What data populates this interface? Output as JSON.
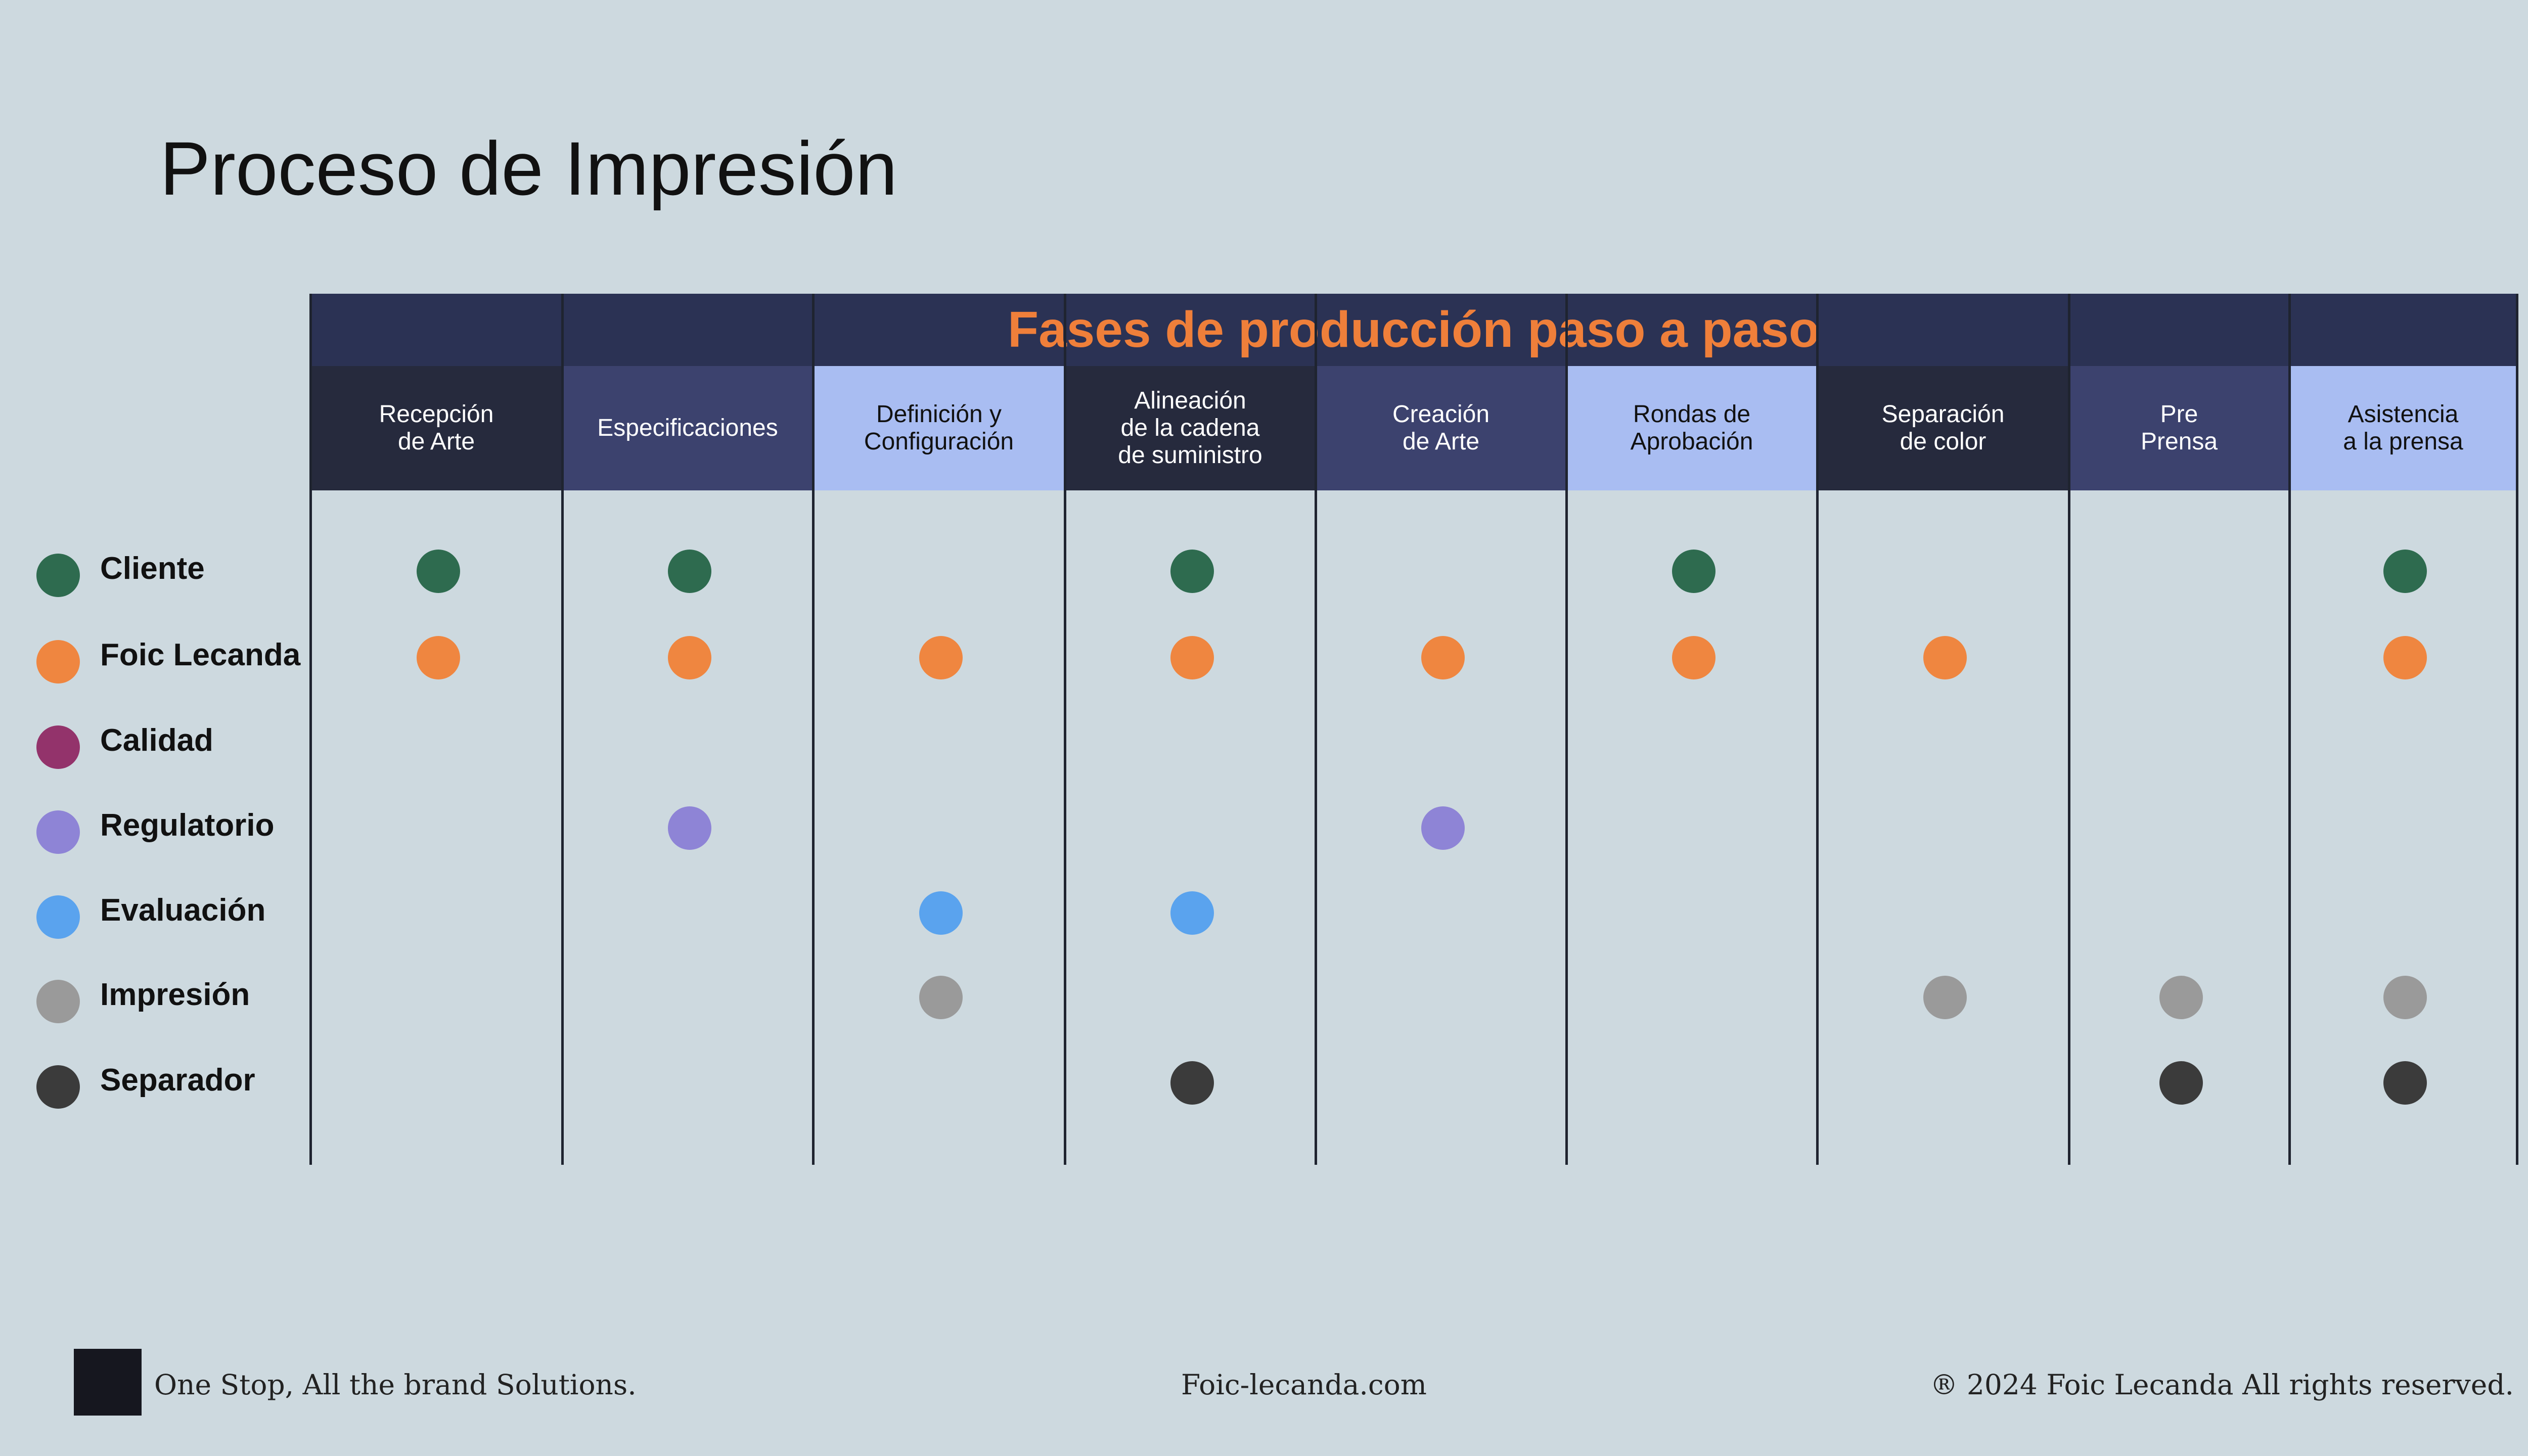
{
  "title": "Proceso de Impresión",
  "banner": "Fases de producción paso a paso",
  "phases": [
    {
      "label": "Recepción\nde Arte",
      "bg": "#262a3d",
      "fg": "#ffffff"
    },
    {
      "label": "Especificaciones",
      "bg": "#3c426e",
      "fg": "#ffffff"
    },
    {
      "label": "Definición y\nConfiguración",
      "bg": "#a9bdf2",
      "fg": "#111111"
    },
    {
      "label": "Alineación\nde la cadena\nde suministro",
      "bg": "#262a3d",
      "fg": "#ffffff"
    },
    {
      "label": "Creación\nde Arte",
      "bg": "#3c426e",
      "fg": "#ffffff"
    },
    {
      "label": "Rondas de\nAprobación",
      "bg": "#a9bdf2",
      "fg": "#111111"
    },
    {
      "label": "Separación\nde color",
      "bg": "#262a3d",
      "fg": "#ffffff"
    },
    {
      "label": "Pre\nPrensa",
      "bg": "#3c426e",
      "fg": "#ffffff"
    },
    {
      "label": "Asistencia\na la prensa",
      "bg": "#a9bdf2",
      "fg": "#111111"
    }
  ],
  "roles": [
    {
      "label": "Cliente",
      "color": "#2e6b4f"
    },
    {
      "label": "Foic Lecanda",
      "color": "#ef8640"
    },
    {
      "label": "Calidad",
      "color": "#93336b"
    },
    {
      "label": "Regulatorio",
      "color": "#8e84d6"
    },
    {
      "label": "Evaluación",
      "color": "#5aa3ee"
    },
    {
      "label": "Impresión",
      "color": "#9a9a9a"
    },
    {
      "label": "Separador",
      "color": "#3b3b3b"
    }
  ],
  "matrix": [
    [
      1,
      1,
      0,
      1,
      0,
      1,
      0,
      0,
      1
    ],
    [
      1,
      1,
      1,
      1,
      1,
      1,
      1,
      0,
      1
    ],
    [
      0,
      0,
      0,
      0,
      0,
      0,
      0,
      0,
      0
    ],
    [
      0,
      1,
      0,
      0,
      1,
      0,
      0,
      0,
      0
    ],
    [
      0,
      0,
      1,
      1,
      0,
      0,
      0,
      0,
      0
    ],
    [
      0,
      0,
      1,
      0,
      0,
      0,
      1,
      1,
      1
    ],
    [
      0,
      0,
      0,
      1,
      0,
      0,
      0,
      1,
      1
    ]
  ],
  "footer": {
    "tagline": "One Stop, All the brand Solutions.",
    "website": "Foic-lecanda.com",
    "copyright": "® 2024 Foic Lecanda  All rights reserved."
  }
}
